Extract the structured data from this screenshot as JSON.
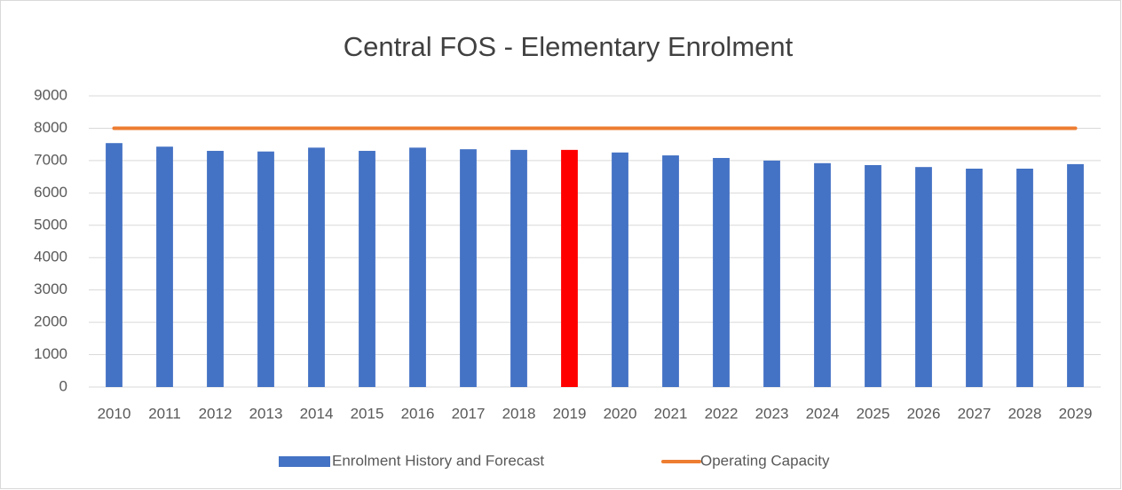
{
  "chart_data": {
    "type": "bar",
    "title": "Central FOS - Elementary Enrolment",
    "categories": [
      "2010",
      "2011",
      "2012",
      "2013",
      "2014",
      "2015",
      "2016",
      "2017",
      "2018",
      "2019",
      "2020",
      "2021",
      "2022",
      "2023",
      "2024",
      "2025",
      "2026",
      "2027",
      "2028",
      "2029"
    ],
    "series": [
      {
        "name": "Enrolment History and Forecast",
        "type": "bar",
        "color": "#4472c4",
        "colors": [
          "#4472c4",
          "#4472c4",
          "#4472c4",
          "#4472c4",
          "#4472c4",
          "#4472c4",
          "#4472c4",
          "#4472c4",
          "#4472c4",
          "#ff0000",
          "#4472c4",
          "#4472c4",
          "#4472c4",
          "#4472c4",
          "#4472c4",
          "#4472c4",
          "#4472c4",
          "#4472c4",
          "#4472c4",
          "#4472c4"
        ],
        "values": [
          7540,
          7430,
          7300,
          7280,
          7400,
          7300,
          7400,
          7350,
          7330,
          7330,
          7250,
          7160,
          7080,
          7000,
          6920,
          6860,
          6800,
          6750,
          6750,
          6890
        ]
      },
      {
        "name": "Operating Capacity",
        "type": "line",
        "color": "#ed7d31",
        "values": [
          8000,
          8000,
          8000,
          8000,
          8000,
          8000,
          8000,
          8000,
          8000,
          8000,
          8000,
          8000,
          8000,
          8000,
          8000,
          8000,
          8000,
          8000,
          8000,
          8000
        ]
      }
    ],
    "ylim": [
      0,
      9000
    ],
    "yticks": [
      0,
      1000,
      2000,
      3000,
      4000,
      5000,
      6000,
      7000,
      8000,
      9000
    ],
    "grid": true,
    "legend": "bottom"
  }
}
